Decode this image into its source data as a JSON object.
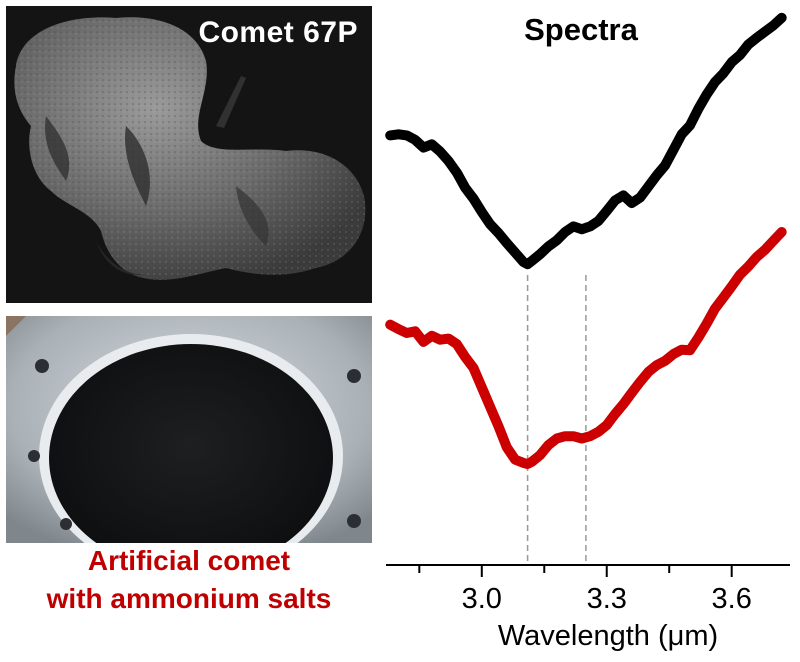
{
  "panels": {
    "comet_photo": {
      "title": "Comet 67P"
    },
    "sample_photo": {
      "caption_line1": "Artificial comet",
      "caption_line2": "with ammonium salts"
    }
  },
  "chart_data": {
    "type": "line",
    "title": "Spectra",
    "xlabel": "Wavelength (μm)",
    "ylabel": "",
    "xlim": [
      2.77,
      3.74
    ],
    "ylim": [
      0,
      1
    ],
    "xticks": [
      3.0,
      3.3,
      3.6
    ],
    "xtick_labels": [
      "3.0",
      "3.3",
      "3.6"
    ],
    "reference_lines": [
      3.11,
      3.25
    ],
    "grid": false,
    "legend": "none",
    "series": [
      {
        "color": "#000000",
        "x": [
          2.78,
          2.8,
          2.82,
          2.84,
          2.86,
          2.88,
          2.9,
          2.92,
          2.94,
          2.96,
          2.98,
          3.0,
          3.02,
          3.04,
          3.06,
          3.08,
          3.1,
          3.11,
          3.12,
          3.14,
          3.16,
          3.18,
          3.2,
          3.22,
          3.24,
          3.26,
          3.28,
          3.3,
          3.32,
          3.34,
          3.36,
          3.38,
          3.4,
          3.42,
          3.44,
          3.46,
          3.48,
          3.5,
          3.52,
          3.54,
          3.56,
          3.58,
          3.6,
          3.62,
          3.64,
          3.66,
          3.68,
          3.7,
          3.72
        ],
        "y": [
          0.774,
          0.776,
          0.774,
          0.766,
          0.752,
          0.758,
          0.745,
          0.728,
          0.707,
          0.68,
          0.66,
          0.636,
          0.614,
          0.598,
          0.58,
          0.563,
          0.546,
          0.542,
          0.548,
          0.56,
          0.574,
          0.585,
          0.6,
          0.61,
          0.605,
          0.61,
          0.62,
          0.638,
          0.657,
          0.666,
          0.652,
          0.662,
          0.682,
          0.702,
          0.72,
          0.748,
          0.776,
          0.792,
          0.822,
          0.848,
          0.87,
          0.886,
          0.906,
          0.919,
          0.938,
          0.95,
          0.961,
          0.972,
          0.986
        ]
      },
      {
        "color": "#cc0000",
        "x": [
          2.78,
          2.8,
          2.82,
          2.84,
          2.86,
          2.88,
          2.9,
          2.92,
          2.94,
          2.96,
          2.98,
          3.0,
          3.02,
          3.04,
          3.06,
          3.08,
          3.1,
          3.11,
          3.12,
          3.14,
          3.16,
          3.18,
          3.2,
          3.22,
          3.24,
          3.26,
          3.28,
          3.3,
          3.32,
          3.34,
          3.36,
          3.38,
          3.4,
          3.42,
          3.44,
          3.46,
          3.48,
          3.5,
          3.52,
          3.54,
          3.56,
          3.58,
          3.6,
          3.62,
          3.64,
          3.66,
          3.68,
          3.7,
          3.72
        ],
        "y": [
          0.433,
          0.425,
          0.418,
          0.421,
          0.402,
          0.413,
          0.406,
          0.408,
          0.398,
          0.375,
          0.355,
          0.32,
          0.285,
          0.25,
          0.212,
          0.19,
          0.184,
          0.182,
          0.186,
          0.198,
          0.216,
          0.228,
          0.232,
          0.232,
          0.228,
          0.232,
          0.24,
          0.252,
          0.272,
          0.29,
          0.31,
          0.33,
          0.348,
          0.36,
          0.368,
          0.38,
          0.388,
          0.387,
          0.41,
          0.435,
          0.462,
          0.482,
          0.502,
          0.523,
          0.538,
          0.555,
          0.568,
          0.584,
          0.6
        ]
      }
    ]
  }
}
